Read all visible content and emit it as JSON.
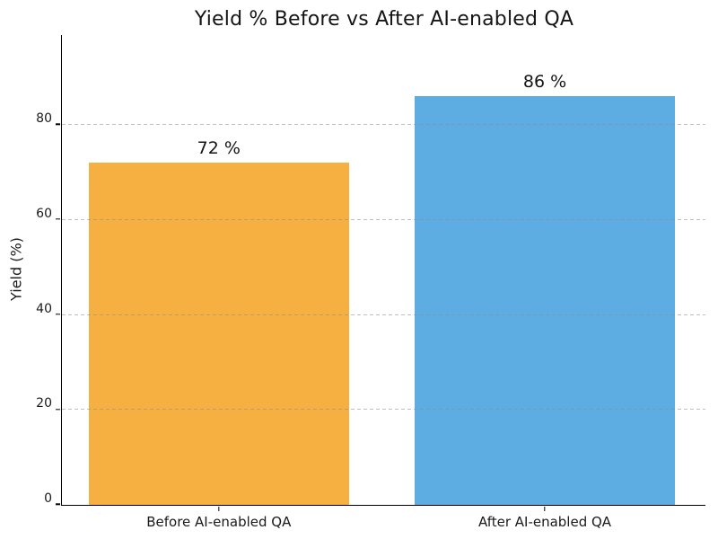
{
  "chart_data": {
    "type": "bar",
    "title": "Yield % Before vs After AI-enabled QA",
    "categories": [
      "Before AI-enabled QA",
      "After AI-enabled QA"
    ],
    "values": [
      72,
      86
    ],
    "value_labels": [
      "72 %",
      "86 %"
    ],
    "series": [
      {
        "name": "Yield %",
        "values": [
          72,
          86
        ]
      }
    ],
    "bar_colors": [
      "#F5B041",
      "#5DADE2"
    ],
    "xlabel": "",
    "ylabel": "Yield (%)",
    "yticks": [
      0,
      20,
      40,
      60,
      80
    ],
    "ylim": [
      0,
      98.8
    ],
    "grid": "horizontal dashed gridlines at y-ticks",
    "gridline_color": "#c9c9c9",
    "legend_position": "none",
    "background_color": "#ffffff",
    "text_color": "#1a1a1a",
    "spines": [
      "left",
      "bottom"
    ]
  }
}
